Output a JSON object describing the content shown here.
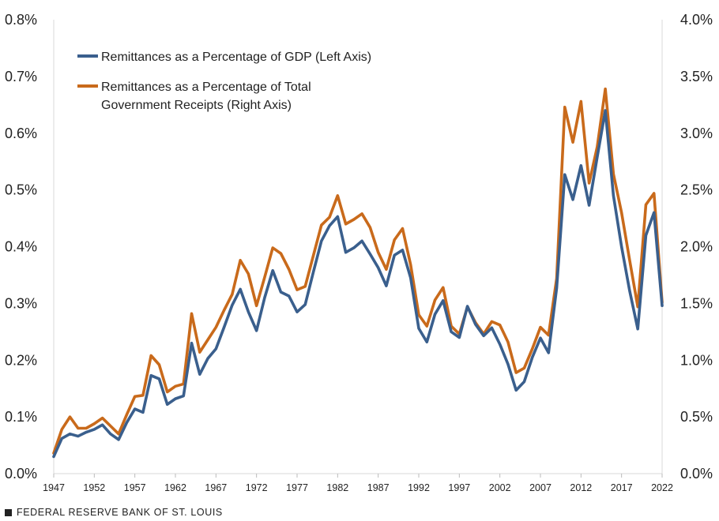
{
  "chart_data": {
    "type": "line",
    "title": "",
    "xlabel": "",
    "ylabel_left": "",
    "ylabel_right": "",
    "ylim_left": [
      0,
      0.8
    ],
    "ylim_right": [
      0,
      4.0
    ],
    "xlim": [
      1947,
      2022
    ],
    "left_ticks": [
      "0.0%",
      "0.1%",
      "0.2%",
      "0.3%",
      "0.4%",
      "0.5%",
      "0.6%",
      "0.7%",
      "0.8%"
    ],
    "right_ticks": [
      "0.0%",
      "0.5%",
      "1.0%",
      "1.5%",
      "2.0%",
      "2.5%",
      "3.0%",
      "3.5%",
      "4.0%"
    ],
    "x_ticks": [
      "1947",
      "1952",
      "1957",
      "1962",
      "1967",
      "1972",
      "1977",
      "1982",
      "1987",
      "1992",
      "1997",
      "2002",
      "2007",
      "2012",
      "2017",
      "2022"
    ],
    "x": [
      1947,
      1948,
      1949,
      1950,
      1951,
      1952,
      1953,
      1954,
      1955,
      1956,
      1957,
      1958,
      1959,
      1960,
      1961,
      1962,
      1963,
      1964,
      1965,
      1966,
      1967,
      1968,
      1969,
      1970,
      1971,
      1972,
      1973,
      1974,
      1975,
      1976,
      1977,
      1978,
      1979,
      1980,
      1981,
      1982,
      1983,
      1984,
      1985,
      1986,
      1987,
      1988,
      1989,
      1990,
      1991,
      1992,
      1993,
      1994,
      1995,
      1996,
      1997,
      1998,
      1999,
      2000,
      2001,
      2002,
      2003,
      2004,
      2005,
      2006,
      2007,
      2008,
      2009,
      2010,
      2011,
      2012,
      2013,
      2014,
      2015,
      2016,
      2017,
      2018,
      2019,
      2020,
      2021,
      2022
    ],
    "series": [
      {
        "name": "Remittances as a Percentage of GDP (Left Axis)",
        "axis": "left",
        "color": "#3a5f8d",
        "values": [
          0.03,
          0.062,
          0.07,
          0.066,
          0.073,
          0.078,
          0.086,
          0.07,
          0.06,
          0.09,
          0.114,
          0.108,
          0.173,
          0.167,
          0.122,
          0.132,
          0.137,
          0.23,
          0.175,
          0.203,
          0.22,
          0.258,
          0.297,
          0.325,
          0.285,
          0.252,
          0.31,
          0.358,
          0.32,
          0.313,
          0.285,
          0.298,
          0.355,
          0.41,
          0.437,
          0.453,
          0.39,
          0.398,
          0.41,
          0.387,
          0.363,
          0.331,
          0.385,
          0.394,
          0.345,
          0.256,
          0.232,
          0.281,
          0.305,
          0.25,
          0.24,
          0.295,
          0.263,
          0.243,
          0.257,
          0.228,
          0.193,
          0.147,
          0.162,
          0.205,
          0.239,
          0.213,
          0.327,
          0.527,
          0.483,
          0.543,
          0.473,
          0.558,
          0.64,
          0.49,
          0.4,
          0.322,
          0.255,
          0.42,
          0.46,
          0.296
        ]
      },
      {
        "name": "Remittances as a Percentage of Total Government Receipts (Right Axis)",
        "axis": "right",
        "color": "#c96a1b",
        "values": [
          0.18,
          0.39,
          0.5,
          0.4,
          0.4,
          0.44,
          0.49,
          0.42,
          0.35,
          0.52,
          0.68,
          0.69,
          1.04,
          0.96,
          0.72,
          0.77,
          0.79,
          1.41,
          1.07,
          1.18,
          1.29,
          1.44,
          1.58,
          1.88,
          1.76,
          1.48,
          1.73,
          1.99,
          1.94,
          1.8,
          1.62,
          1.65,
          1.92,
          2.19,
          2.26,
          2.45,
          2.2,
          2.24,
          2.29,
          2.17,
          1.95,
          1.8,
          2.06,
          2.16,
          1.84,
          1.4,
          1.3,
          1.53,
          1.64,
          1.3,
          1.23,
          1.47,
          1.33,
          1.23,
          1.34,
          1.31,
          1.16,
          0.89,
          0.93,
          1.1,
          1.29,
          1.22,
          1.72,
          3.23,
          2.92,
          3.28,
          2.56,
          2.88,
          3.39,
          2.64,
          2.3,
          1.88,
          1.47,
          2.37,
          2.47,
          1.51
        ]
      }
    ],
    "legend_position": "top-left"
  },
  "legend": {
    "gdp_label": "Remittances as a Percentage of GDP (Left Axis)",
    "receipts_label_line1": "Remittances as a Percentage of Total",
    "receipts_label_line2": "Government Receipts (Right Axis)"
  },
  "source": {
    "label": "FEDERAL RESERVE BANK OF ST. LOUIS"
  }
}
